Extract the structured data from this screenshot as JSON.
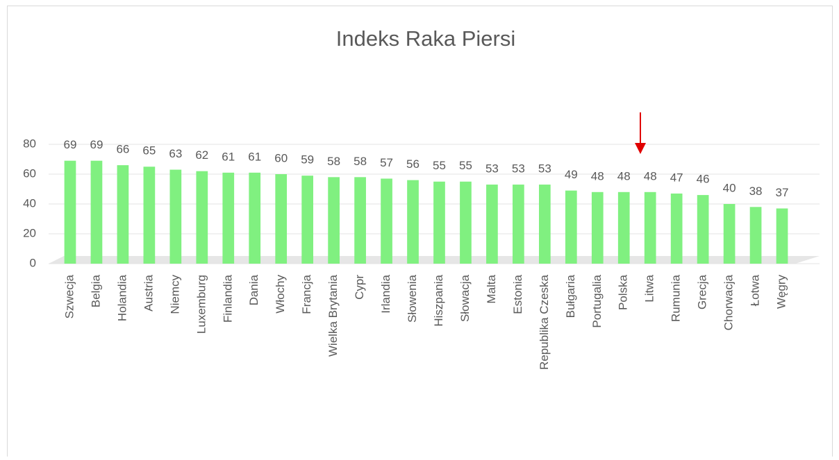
{
  "chart_data": {
    "type": "bar",
    "title": "Indeks Raka Piersi",
    "categories": [
      "Szwecja",
      "Belgia",
      "Holandia",
      "Austria",
      "Niemcy",
      "Luxemburg",
      "Finlandia",
      "Dania",
      "Włochy",
      "Francja",
      "Wielka Brytania",
      "Cypr",
      "Irlandia",
      "Słowenia",
      "Hiszpania",
      "Słowacja",
      "Malta",
      "Estonia",
      "Republika Czeska",
      "Bułgaria",
      "Portugalia",
      "Polska",
      "Litwa",
      "Rumunia",
      "Grecja",
      "Chorwacja",
      "Łotwa",
      "Węgry"
    ],
    "values": [
      69,
      69,
      66,
      65,
      63,
      62,
      61,
      61,
      60,
      59,
      58,
      58,
      57,
      56,
      55,
      55,
      53,
      53,
      53,
      49,
      48,
      48,
      48,
      47,
      46,
      40,
      38,
      37
    ],
    "color": "#80f080",
    "ylim": [
      0,
      80
    ],
    "yticks": [
      0,
      20,
      40,
      60,
      80
    ],
    "grid": true
  }
}
